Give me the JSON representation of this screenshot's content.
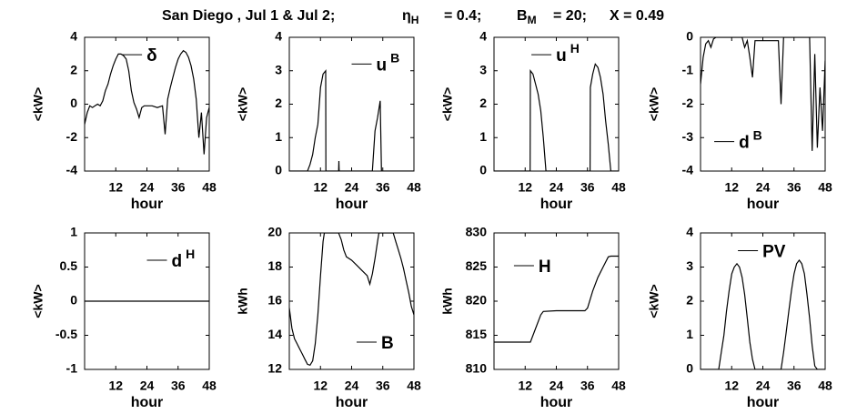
{
  "title": [
    {
      "text": "San Diego , Jul 1 & Jul 2;"
    },
    {
      "text": "η",
      "sub": "H"
    },
    {
      "text": "= 0.4;"
    },
    {
      "text": "B",
      "sub": "M"
    },
    {
      "text": "= 20;"
    },
    {
      "text": "X = 0.49"
    }
  ],
  "chart_data": [
    {
      "type": "line",
      "xlabel": "hour",
      "ylabel": "<kW>",
      "xlim": [
        0,
        48
      ],
      "xticks": [
        12,
        24,
        36,
        48
      ],
      "ylim": [
        -4,
        4
      ],
      "yticks": [
        -4,
        -2,
        0,
        2,
        4
      ],
      "legend": "upper center",
      "x": [
        0,
        1,
        2,
        3,
        4,
        5,
        6,
        7,
        8,
        9,
        10,
        11,
        12,
        13,
        14,
        15,
        16,
        17,
        18,
        19,
        20,
        21,
        22,
        23,
        24,
        26,
        28,
        30,
        31,
        32,
        33,
        34,
        35,
        36,
        37,
        38,
        39,
        40,
        41,
        42,
        43,
        44,
        45,
        46,
        47,
        48
      ],
      "series": [
        {
          "name": "δ",
          "color": "#000000",
          "values": [
            -1.2,
            -0.5,
            -0.1,
            -0.2,
            -0.1,
            0,
            -0.1,
            0.2,
            0.8,
            1.2,
            1.8,
            2.3,
            2.7,
            3,
            3,
            2.9,
            2.7,
            2,
            0.8,
            0.1,
            -0.3,
            -0.8,
            -0.2,
            -0.1,
            -0.1,
            -0.1,
            -0.2,
            -0.1,
            -1.8,
            0.3,
            1,
            1.6,
            2.2,
            2.7,
            3,
            3.2,
            3.1,
            2.8,
            2.3,
            1.5,
            0.3,
            -2,
            -0.5,
            -3,
            -0.8,
            -0.2
          ]
        }
      ]
    },
    {
      "type": "line",
      "xlabel": "hour",
      "ylabel": "<kW>",
      "xlim": [
        0,
        48
      ],
      "xticks": [
        12,
        24,
        36,
        48
      ],
      "ylim": [
        0,
        4
      ],
      "yticks": [
        0,
        1,
        2,
        3,
        4
      ],
      "legend": "upper right",
      "x": [
        0,
        7,
        8,
        9,
        10,
        11,
        12,
        13,
        14,
        14.1,
        19,
        19.1,
        19.2,
        32,
        33,
        34,
        35,
        35.5,
        48
      ],
      "series": [
        {
          "name": "u",
          "sup": "B",
          "color": "#000000",
          "values": [
            0,
            0,
            0.2,
            0.5,
            1,
            1.4,
            2.5,
            2.9,
            3,
            0,
            0,
            0.3,
            0,
            0,
            1.2,
            1.6,
            2.1,
            0,
            0
          ]
        }
      ]
    },
    {
      "type": "line",
      "xlabel": "hour",
      "ylabel": "<kW>",
      "xlim": [
        0,
        48
      ],
      "xticks": [
        12,
        24,
        36,
        48
      ],
      "ylim": [
        0,
        4
      ],
      "yticks": [
        0,
        1,
        2,
        3,
        4
      ],
      "legend": "upper center",
      "x": [
        0,
        13.9,
        14,
        15,
        16,
        17,
        18,
        19,
        20,
        37,
        37.1,
        38,
        39,
        40,
        41,
        42,
        43,
        44,
        45,
        48
      ],
      "series": [
        {
          "name": "u",
          "sup": "H",
          "color": "#000000",
          "values": [
            0,
            0,
            3,
            2.9,
            2.6,
            2.3,
            1.8,
            1,
            0,
            0,
            2.5,
            2.9,
            3.2,
            3.1,
            2.8,
            2.3,
            1.5,
            0.8,
            0,
            0
          ]
        }
      ]
    },
    {
      "type": "line",
      "xlabel": "hour",
      "ylabel": "<kW>",
      "xlim": [
        0,
        48
      ],
      "xticks": [
        12,
        24,
        36,
        48
      ],
      "ylim": [
        -4,
        0
      ],
      "yticks": [
        -4,
        -3,
        -2,
        -1,
        0
      ],
      "legend": "lower left",
      "x": [
        0,
        1,
        2,
        3,
        4,
        5,
        6,
        16,
        17,
        18,
        19,
        20,
        21,
        23,
        25,
        28,
        30,
        31,
        32,
        40,
        42,
        43,
        44,
        45,
        46,
        47,
        48
      ],
      "series": [
        {
          "name": "d",
          "sup": "B",
          "color": "#000000",
          "values": [
            -1.4,
            -0.6,
            -0.2,
            -0.1,
            -0.3,
            -0.05,
            0,
            0,
            -0.3,
            -0.1,
            -0.6,
            -1.2,
            -0.1,
            -0.1,
            -0.1,
            -0.1,
            -0.1,
            -2,
            0,
            0,
            0,
            -3.4,
            -0.5,
            -3.3,
            -1.5,
            -2.8,
            -0.7
          ]
        }
      ]
    },
    {
      "type": "line",
      "xlabel": "hour",
      "ylabel": "<kW>",
      "xlim": [
        0,
        48
      ],
      "xticks": [
        12,
        24,
        36,
        48
      ],
      "ylim": [
        -1,
        1
      ],
      "yticks": [
        -1,
        -0.5,
        0,
        0.5,
        1
      ],
      "legend": "upper right",
      "x": [
        0,
        48
      ],
      "series": [
        {
          "name": "d",
          "sup": "H",
          "color": "#000000",
          "values": [
            0,
            0
          ]
        }
      ]
    },
    {
      "type": "line",
      "xlabel": "hour",
      "ylabel": "kWh",
      "xlim": [
        0,
        48
      ],
      "xticks": [
        12,
        24,
        36,
        48
      ],
      "ylim": [
        12,
        20
      ],
      "yticks": [
        12,
        14,
        16,
        18,
        20
      ],
      "legend": "lower right",
      "x": [
        0,
        1,
        2,
        3,
        4,
        5,
        6,
        7,
        8,
        9,
        10,
        11,
        12,
        13,
        13.5,
        19,
        20,
        21,
        22,
        24,
        26,
        28,
        30,
        31,
        32,
        33,
        34,
        34.5,
        40,
        41,
        42,
        43,
        44,
        45,
        46,
        47,
        48
      ],
      "series": [
        {
          "name": "B",
          "color": "#000000",
          "values": [
            15.6,
            14.4,
            13.8,
            13.5,
            13.2,
            12.9,
            12.6,
            12.3,
            12.25,
            12.5,
            13.5,
            15.2,
            17.5,
            19.5,
            20,
            20,
            19.6,
            19,
            18.6,
            18.4,
            18.1,
            17.8,
            17.5,
            17,
            17.6,
            18.5,
            19.5,
            20,
            20,
            19.5,
            19,
            18.5,
            17.9,
            17.2,
            16.5,
            15.7,
            15.2
          ]
        }
      ]
    },
    {
      "type": "line",
      "xlabel": "hour",
      "ylabel": "kWh",
      "xlim": [
        0,
        48
      ],
      "xticks": [
        12,
        24,
        36,
        48
      ],
      "ylim": [
        810,
        830
      ],
      "yticks": [
        810,
        815,
        820,
        825,
        830
      ],
      "legend": "upper left",
      "x": [
        0,
        14,
        16,
        18,
        19,
        24,
        35,
        36,
        38,
        40,
        42,
        44,
        45,
        48
      ],
      "series": [
        {
          "name": "H",
          "color": "#000000",
          "values": [
            814,
            814,
            816,
            818,
            818.5,
            818.6,
            818.6,
            819,
            821.5,
            823.5,
            825,
            826.5,
            826.6,
            826.6
          ]
        }
      ]
    },
    {
      "type": "line",
      "xlabel": "hour",
      "ylabel": "<kW>",
      "xlim": [
        0,
        48
      ],
      "xticks": [
        12,
        24,
        36,
        48
      ],
      "ylim": [
        0,
        4
      ],
      "yticks": [
        0,
        1,
        2,
        3,
        4
      ],
      "legend": "upper center",
      "x": [
        0,
        7,
        8,
        9,
        10,
        11,
        12,
        13,
        14,
        15,
        16,
        17,
        18,
        19,
        20,
        21,
        31,
        32,
        33,
        34,
        35,
        36,
        37,
        38,
        39,
        40,
        41,
        42,
        43,
        44,
        45,
        48
      ],
      "series": [
        {
          "name": "PV",
          "color": "#000000",
          "values": [
            0,
            0,
            0.5,
            1,
            1.7,
            2.3,
            2.8,
            3,
            3.1,
            3,
            2.7,
            2.2,
            1.5,
            0.8,
            0.3,
            0,
            0,
            0.5,
            1.1,
            1.7,
            2.3,
            2.8,
            3.1,
            3.2,
            3.1,
            2.8,
            2.2,
            1.5,
            0.7,
            0.1,
            0,
            0
          ]
        }
      ]
    }
  ]
}
